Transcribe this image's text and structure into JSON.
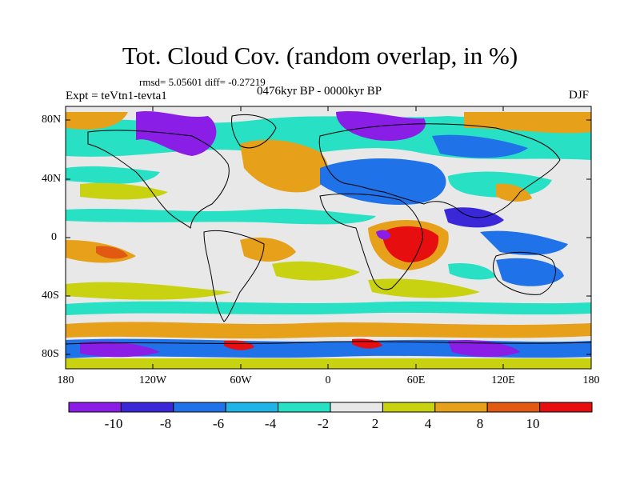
{
  "title": "Tot. Cloud Cov. (random overlap, in %)",
  "stats": "rmsd= 5.05601 diff= -0.27219",
  "experiment": "Expt = teVtn1-tevta1",
  "period": "0476kyr BP - 0000kyr BP",
  "season": "DJF",
  "lat_ticks": [
    "80N",
    "40N",
    "0",
    "40S",
    "80S"
  ],
  "lon_ticks": [
    "180",
    "120W",
    "60W",
    "0",
    "60E",
    "120E",
    "180"
  ],
  "colorbar": {
    "labels": [
      "-10",
      "-8",
      "-6",
      "-4",
      "-2",
      "2",
      "4",
      "8",
      "10"
    ],
    "colors": [
      "#8a1ee6",
      "#3a28d8",
      "#1f72e8",
      "#1fb4e6",
      "#28e0c4",
      "#e8e8e8",
      "#c8d210",
      "#e6a01a",
      "#e25a12",
      "#e60e0e"
    ]
  }
}
